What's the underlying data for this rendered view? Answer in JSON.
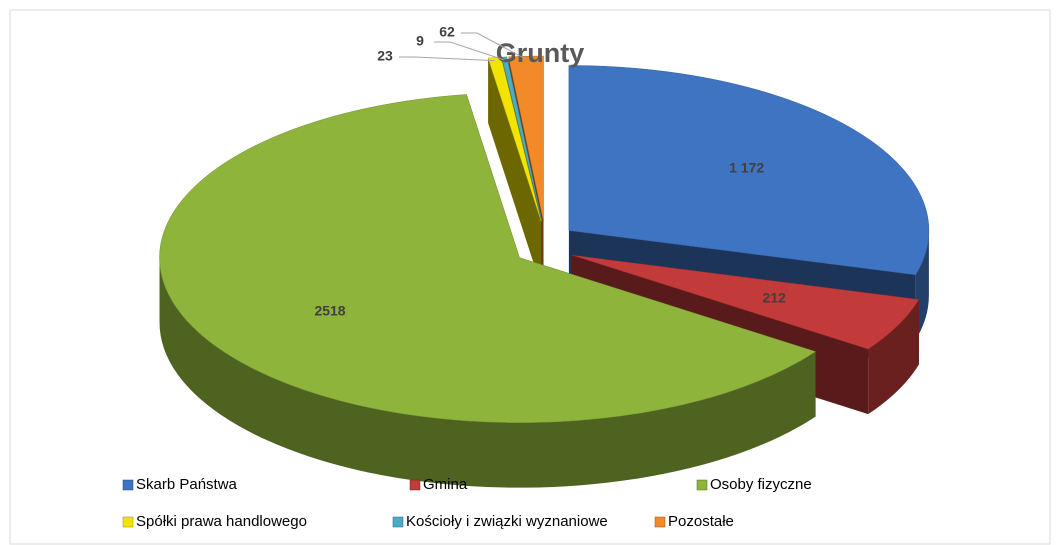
{
  "chart_data": {
    "type": "pie3d",
    "title": "Grunty",
    "categories": [
      "Skarb Państwa",
      "Gmina",
      "Osoby fizyczne",
      "Spółki prawa handlowego",
      "Kościoły i związki wyznaniowe",
      "Pozostałe"
    ],
    "values": [
      1172,
      212,
      2518,
      23,
      9,
      62
    ],
    "value_labels": [
      "1 172",
      "212",
      "2518",
      "23",
      "9",
      "62"
    ],
    "colors": [
      "#3f74c2",
      "#c33a3a",
      "#8fb43c",
      "#f2e400",
      "#4bacc6",
      "#f28a2a"
    ],
    "legend": "bottom"
  }
}
